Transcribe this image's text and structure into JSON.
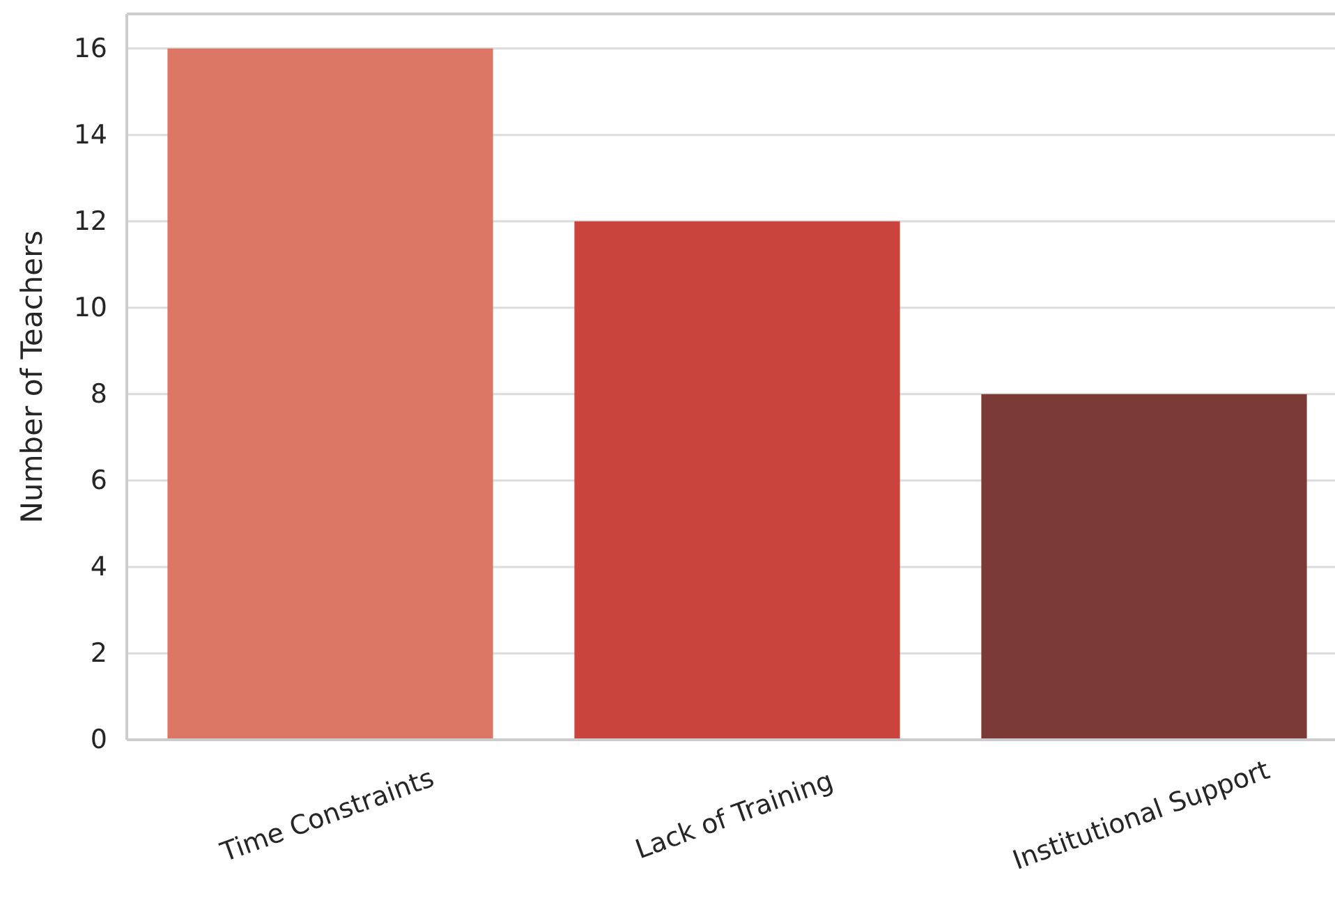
{
  "chart_data": {
    "type": "bar",
    "ylabel": "Number of Teachers",
    "categories": [
      "Time Constraints",
      "Lack of Training",
      "Institutional Support"
    ],
    "values": [
      16,
      12,
      8
    ],
    "colors": [
      "#dc7665",
      "#c9443d",
      "#7b3a36"
    ],
    "ylim": [
      0,
      16.8
    ],
    "yticks": [
      0,
      2,
      4,
      6,
      8,
      10,
      12,
      14,
      16
    ],
    "grid": "y"
  }
}
